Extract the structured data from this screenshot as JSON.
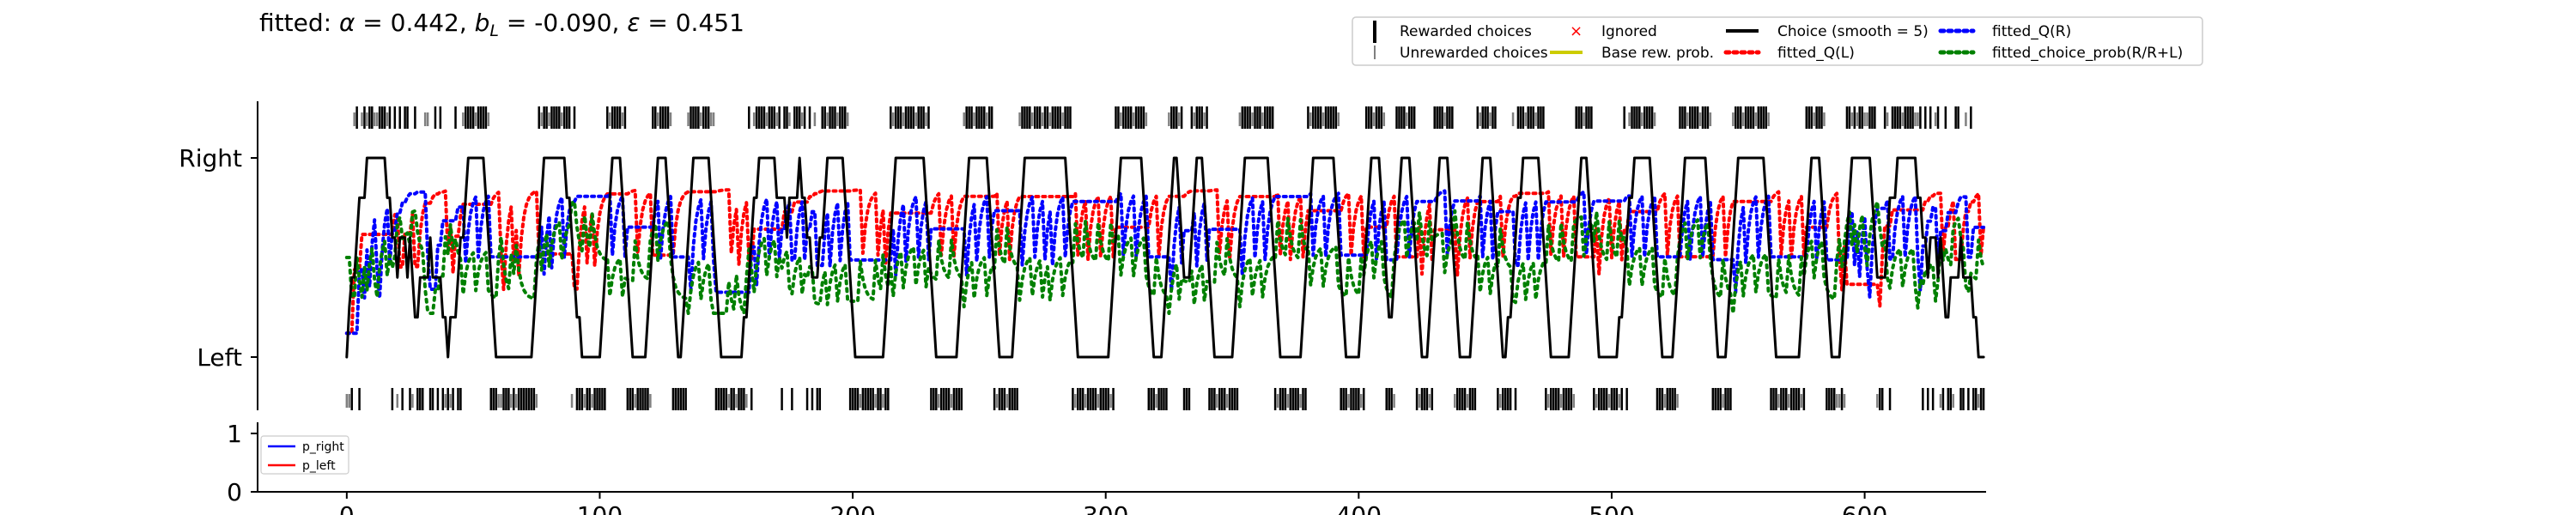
{
  "title": {
    "prefix": "fitted: ",
    "alpha_sym": "α",
    "alpha_val": " = 0.442, ",
    "b_sym": "b",
    "b_sub": "L",
    "b_val": " = -0.090, ",
    "eps_sym": "ε",
    "eps_val": " = 0.451"
  },
  "legend_main": {
    "items": [
      {
        "label": "Rewarded choices",
        "kind": "rewarded",
        "color": "#000000"
      },
      {
        "label": "Unrewarded choices",
        "kind": "unrewarded",
        "color": "#7f7f7f"
      },
      {
        "label": "Ignored",
        "kind": "ignored",
        "color": "#ff0000"
      },
      {
        "label": "Base rew. prob.",
        "kind": "base",
        "color": "#cccc00"
      },
      {
        "label": "Choice (smooth = 5)",
        "kind": "choice",
        "color": "#000000"
      },
      {
        "label": "fitted_Q(L)",
        "kind": "qL",
        "color": "#ff0000"
      },
      {
        "label": "fitted_Q(R)",
        "kind": "qR",
        "color": "#0000ff"
      },
      {
        "label": "fitted_choice_prob(R/R+L)",
        "kind": "prob",
        "color": "#008000"
      }
    ]
  },
  "legend_prob": {
    "items": [
      {
        "label": "p_right",
        "color": "#0000ff"
      },
      {
        "label": "p_left",
        "color": "#ff0000"
      }
    ]
  },
  "chart_data": {
    "type": "line",
    "x_ticks": [
      "0",
      "100",
      "200",
      "300",
      "400",
      "500",
      "600"
    ],
    "xlim": [
      -3,
      648
    ],
    "top_y_ticks": [
      "Right",
      "Left"
    ],
    "bottom_y_ticks": [
      "1",
      "0"
    ],
    "bottom_ylim": [
      0,
      1
    ],
    "n_trials": 648,
    "series": [
      {
        "name": "Choice (smooth = 5)",
        "color": "#000000",
        "style": "solid"
      },
      {
        "name": "fitted_Q(L)",
        "color": "#ff0000",
        "style": "dotted"
      },
      {
        "name": "fitted_Q(R)",
        "color": "#0000ff",
        "style": "dotted"
      },
      {
        "name": "fitted_choice_prob(R/R+L)",
        "color": "#008000",
        "style": "dotted"
      }
    ],
    "choice_sequence": "LLLRRLRRRRRRRRRRRRLRLRLRRLLRLLLRRLLRLRLLLLLRLLRRRRRRRRRRRLLLLLLLLLLLLLLLLLLLRRRRRRRRRRRRRLRLLLLLLLLLLLLRRRRRRRRLLLLLLLLLLRRRRRRRRLLLLLLRRRRRRRRRRRLLLLLLLLLLLLLRLRRRRRRRRRRRLRRRLRRRRRLRLRLLRRRRRRRRRRRLLLLLLLLLLLLLLLLRRRRRRRRRRRRRRRRLLLLLLLLLLLLLRRRRRRRRRRRRLLLLLLLLLLRRRRRRRRRRRRRRRRRRRRRLLLLLLLLLLLLLLLLLRRRRRRRRRRRRRLLLLLLLLRRRRRRLLLRRRRRRRLLLLLLLLLLLLRRRRRRRRRRRRRRLLLLLLLLLLLLLRRRRRRRRRRRRRLLLLLLLLLLRRRRRRRRLLLLRRRRRRRRLLLLLLLRRRRRRRRLLLLLLLLLRRRRRRRRLLLLLLRLRRRRRRRRRRRLLLLLLLLLLLLRRRRRRRLLLLLLLLLLLLRLRRRRRRRRRRRLLLLLLLLLRRRRRRRRRRRRRLLLLLLLLRRRRRRRRRRRRRRRLLLLLLLLLLLLLLRRRRRRRRLLLLLLLLRRRRRRRRRRRR",
    "reward_sequence": "0010110101100111011101111101111001111110101111011110111101110011101011111110101101111011101111011011111101111011110111110110111101111110111101110011111011011101101111011101111011110111101111011101110111101111101101110111011110111011110111101111011101111011101110111101111011101101111011110111011110111101110111101111011101111011101111101110111101110111101111011101111101110111101110111101111101110111101111011101110111101111011101111101110111101111011101110111101111011101111011110111101110111101111011101110111101111011101111011101111011101111011101110111101111011101110111101111011101111"
  }
}
